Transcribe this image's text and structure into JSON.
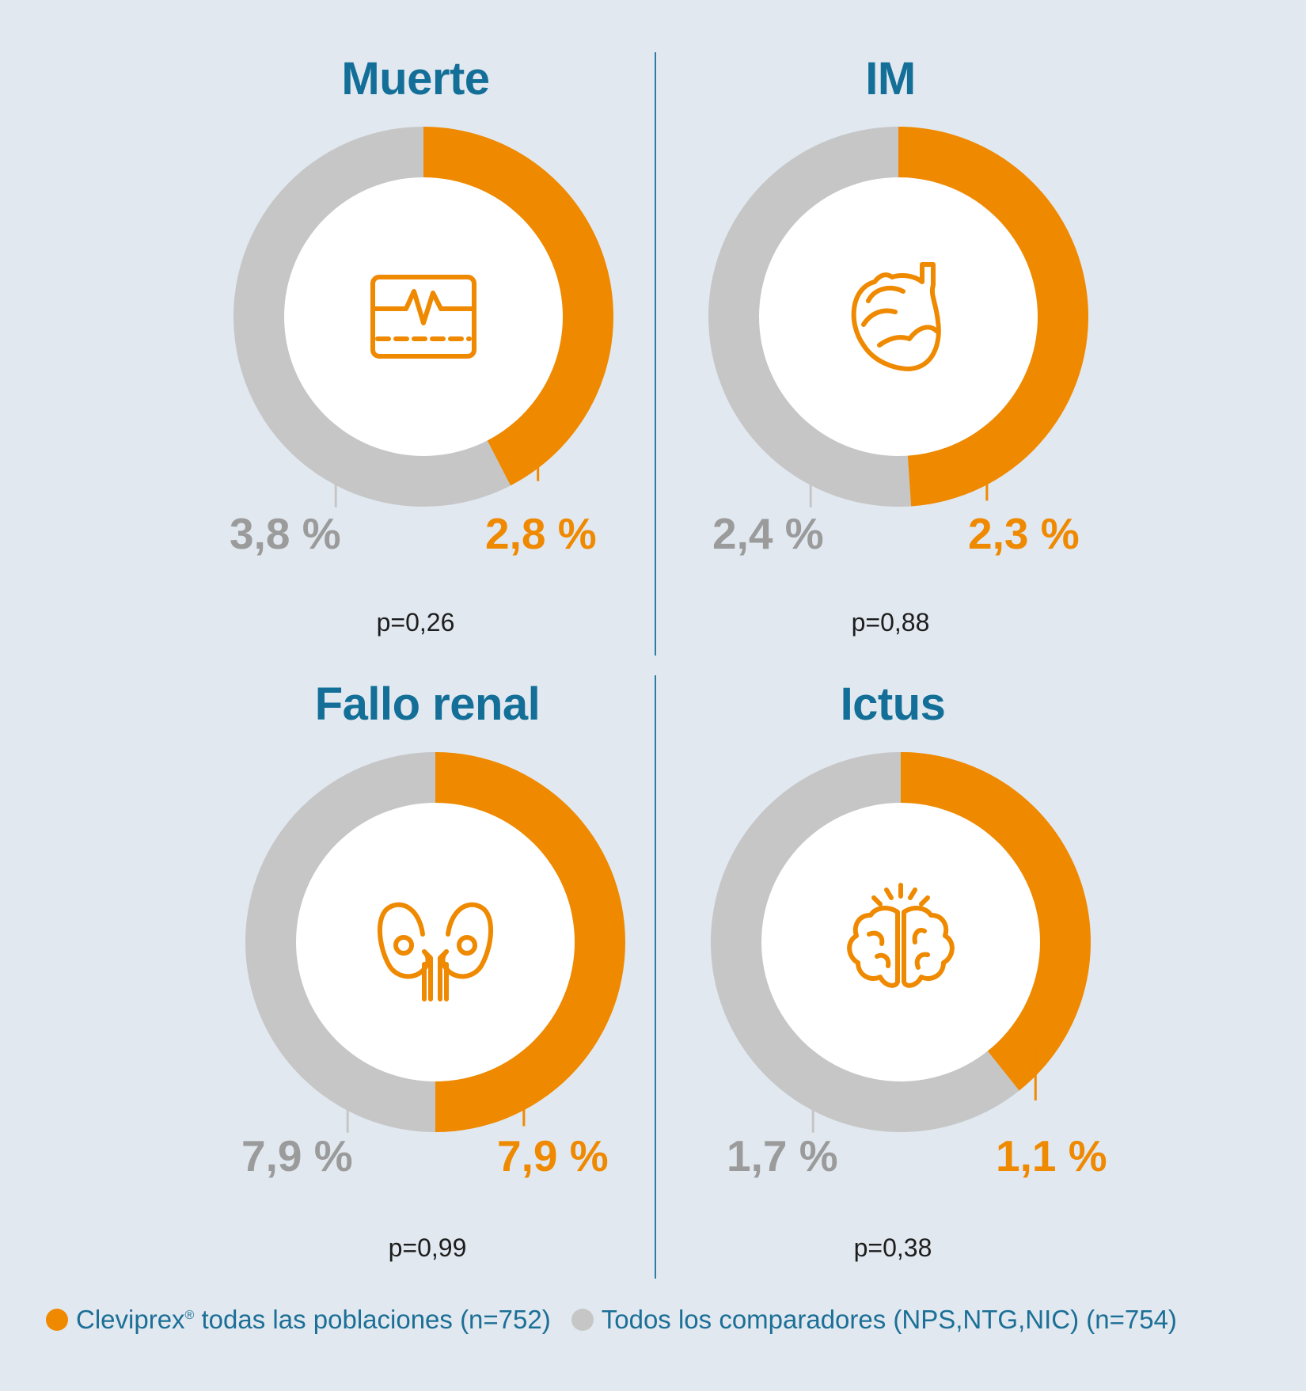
{
  "colors": {
    "background": "#e1e8f0",
    "title": "#136f97",
    "cleviprex": "#ef8900",
    "comparators": "#c6c6c6",
    "comparator_label": "#9b9b9b",
    "legend_text": "#1c6f96"
  },
  "legend": {
    "cleviprex": "Cleviprex",
    "cleviprex_mark": "®",
    "cleviprex_rest": " todas las poblaciones (n=752)",
    "comparators": "Todos los comparadores (NPS,NTG,NIC) (n=754)"
  },
  "chart_data": [
    {
      "type": "pie",
      "title": "Muerte",
      "icon": "ecg-monitor-icon",
      "series": [
        {
          "name": "Cleviprex",
          "value": 2.8,
          "label": "2,8 %"
        },
        {
          "name": "Todos los comparadores",
          "value": 3.8,
          "label": "3,8 %"
        }
      ],
      "p_value": "p=0,26"
    },
    {
      "type": "pie",
      "title": "IM",
      "icon": "heart-icon",
      "series": [
        {
          "name": "Cleviprex",
          "value": 2.3,
          "label": "2,3 %"
        },
        {
          "name": "Todos los comparadores",
          "value": 2.4,
          "label": "2,4 %"
        }
      ],
      "p_value": "p=0,88"
    },
    {
      "type": "pie",
      "title": "Fallo renal",
      "icon": "kidney-icon",
      "series": [
        {
          "name": "Cleviprex",
          "value": 7.9,
          "label": "7,9 %"
        },
        {
          "name": "Todos los comparadores",
          "value": 7.9,
          "label": "7,9 %"
        }
      ],
      "p_value": "p=0,99"
    },
    {
      "type": "pie",
      "title": "Ictus",
      "icon": "brain-icon",
      "series": [
        {
          "name": "Cleviprex",
          "value": 1.1,
          "label": "1,1 %"
        },
        {
          "name": "Todos los comparadores",
          "value": 1.7,
          "label": "1,7 %"
        }
      ],
      "p_value": "p=0,38"
    }
  ]
}
